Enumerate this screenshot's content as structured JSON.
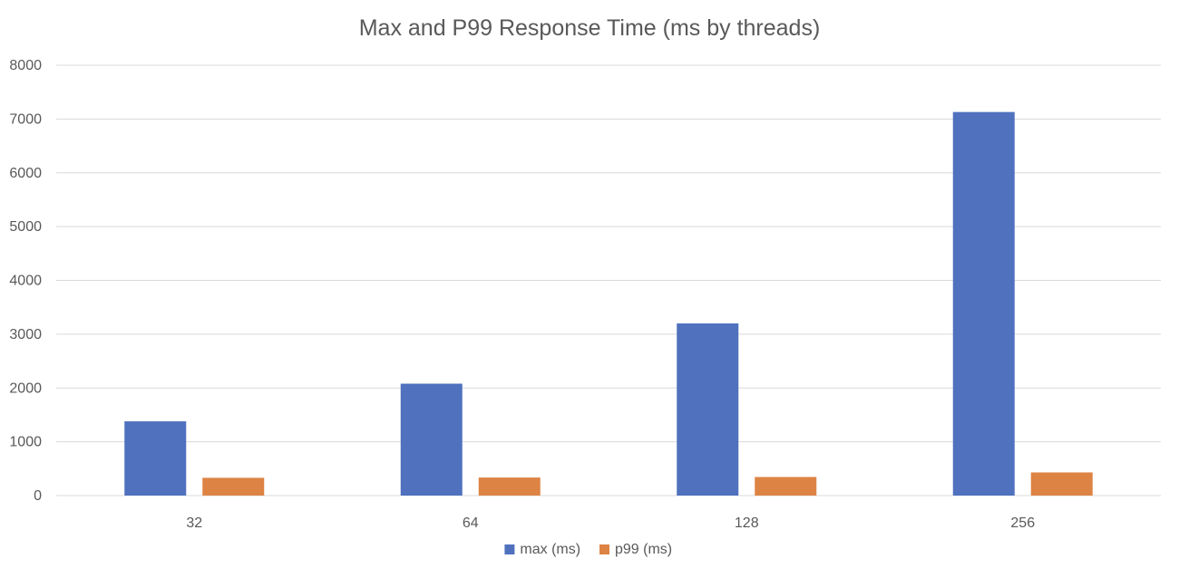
{
  "chart_data": {
    "type": "bar",
    "title": "Max and P99 Response Time (ms by threads)",
    "xlabel": "",
    "ylabel": "",
    "categories": [
      "32",
      "64",
      "128",
      "256"
    ],
    "series": [
      {
        "name": "max (ms)",
        "values": [
          1380,
          2080,
          3200,
          7130
        ],
        "color": "#4f71be"
      },
      {
        "name": "p99 (ms)",
        "values": [
          330,
          335,
          345,
          430
        ],
        "color": "#dd8344"
      }
    ],
    "ylim": [
      0,
      8000
    ],
    "yticks": [
      0,
      1000,
      2000,
      3000,
      4000,
      5000,
      6000,
      7000,
      8000
    ],
    "grid": true,
    "legend_position": "bottom",
    "colors": {
      "gridline": "#d9d9d9",
      "text": "#595959"
    }
  }
}
